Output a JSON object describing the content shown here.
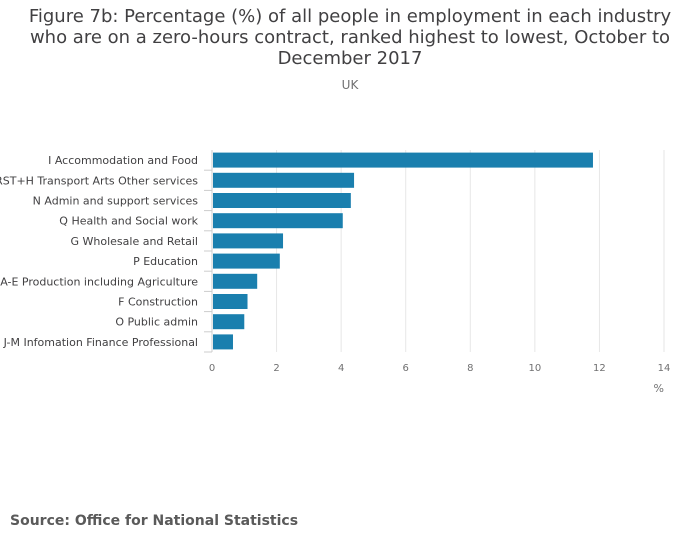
{
  "page": {
    "title": "Figure 7b: Percentage (%) of all people in employment in each industry who are on a zero-hours contract, ranked highest to lowest, October to December 2017",
    "subtitle": "UK",
    "source": "Source: Office for National Statistics"
  },
  "colors": {
    "bar": "#1a7fae",
    "grid": "#e6e6e6",
    "axis": "#cccccc"
  },
  "chart_data": {
    "type": "bar",
    "orientation": "horizontal",
    "title": "Figure 7b: Percentage (%) of all people in employment in each industry who are on a zero-hours contract, ranked highest to lowest, October to December 2017",
    "subtitle": "UK",
    "xlabel": "%",
    "ylabel": "",
    "xlim": [
      0,
      14
    ],
    "ticks": [
      0,
      2,
      4,
      6,
      8,
      10,
      12,
      14
    ],
    "categories": [
      "I Accommodation and Food",
      "RST+H Transport Arts Other services",
      "N Admin and support services",
      "Q Health and Social work",
      "G Wholesale and Retail",
      "P Education",
      "A-E Production including Agriculture",
      "F Construction",
      "O Public admin",
      "J-M Infomation Finance Professional"
    ],
    "values": [
      11.8,
      4.4,
      4.3,
      4.05,
      2.2,
      2.1,
      1.4,
      1.1,
      1.0,
      0.65
    ]
  }
}
